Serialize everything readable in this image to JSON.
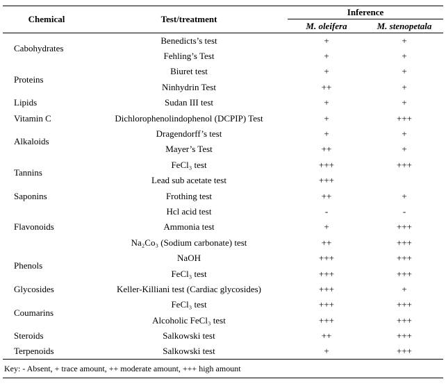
{
  "table": {
    "headers": {
      "chemical": "Chemical",
      "test": "Test/treatment",
      "inference": "Inference",
      "species1": "M. oleifera",
      "species2": "M. stenopetala"
    },
    "groups": [
      {
        "chemical": "Cabohydrates",
        "tests": [
          {
            "name": "Benedicts’s test",
            "oleifera": "+",
            "stenopetala": "+"
          },
          {
            "name": "Fehling’s Test",
            "oleifera": "+",
            "stenopetala": "+"
          }
        ]
      },
      {
        "chemical": "Proteins",
        "tests": [
          {
            "name": "Biuret test",
            "oleifera": "+",
            "stenopetala": "+"
          },
          {
            "name": "Ninhydrin Test",
            "oleifera": "++",
            "stenopetala": "+"
          }
        ]
      },
      {
        "chemical": "Lipids",
        "tests": [
          {
            "name": "Sudan III test",
            "oleifera": "+",
            "stenopetala": "+"
          }
        ]
      },
      {
        "chemical": "Vitamin C",
        "tests": [
          {
            "name": "Dichlorophenolindophenol (DCPIP) Test",
            "oleifera": "+",
            "stenopetala": "+++"
          }
        ]
      },
      {
        "chemical": "Alkaloids",
        "tests": [
          {
            "name": "Dragendorff’s test",
            "oleifera": "+",
            "stenopetala": "+"
          },
          {
            "name": "Mayer’s Test",
            "oleifera": "++",
            "stenopetala": "+"
          }
        ]
      },
      {
        "chemical": "Tannins",
        "tests": [
          {
            "name": "FeCl₃ test",
            "oleifera": "+++",
            "stenopetala": "+++"
          },
          {
            "name": "Lead sub acetate test",
            "oleifera": "+++",
            "stenopetala": ""
          }
        ]
      },
      {
        "chemical": "Saponins",
        "tests": [
          {
            "name": "Frothing test",
            "oleifera": "++",
            "stenopetala": "+"
          }
        ]
      },
      {
        "chemical": "Flavonoids",
        "tests": [
          {
            "name": "Hcl acid test",
            "oleifera": "-",
            "stenopetala": "-"
          },
          {
            "name": "Ammonia test",
            "oleifera": "+",
            "stenopetala": "+++"
          },
          {
            "name": "Na₂Co₃ (Sodium carbonate) test",
            "oleifera": "++",
            "stenopetala": "+++"
          }
        ]
      },
      {
        "chemical": "Phenols",
        "tests": [
          {
            "name": "NaOH",
            "oleifera": "+++",
            "stenopetala": "+++"
          },
          {
            "name": "FeCl₃ test",
            "oleifera": "+++",
            "stenopetala": "+++"
          }
        ]
      },
      {
        "chemical": "Glycosides",
        "tests": [
          {
            "name": "Keller-Killiani test (Cardiac glycosides)",
            "oleifera": "+++",
            "stenopetala": "+"
          }
        ]
      },
      {
        "chemical": "Coumarins",
        "tests": [
          {
            "name": "FeCl₃ test",
            "oleifera": "+++",
            "stenopetala": "+++"
          },
          {
            "name": "Alcoholic FeCl₃ test",
            "oleifera": "+++",
            "stenopetala": "+++"
          }
        ]
      },
      {
        "chemical": "Steroids",
        "tests": [
          {
            "name": "Salkowski test",
            "oleifera": "++",
            "stenopetala": "+++"
          }
        ]
      },
      {
        "chemical": "Terpenoids",
        "tests": [
          {
            "name": "Salkowski test",
            "oleifera": "+",
            "stenopetala": "+++"
          }
        ]
      }
    ],
    "key": "Key: - Absent, + trace amount, ++ moderate amount, +++ high amount"
  }
}
